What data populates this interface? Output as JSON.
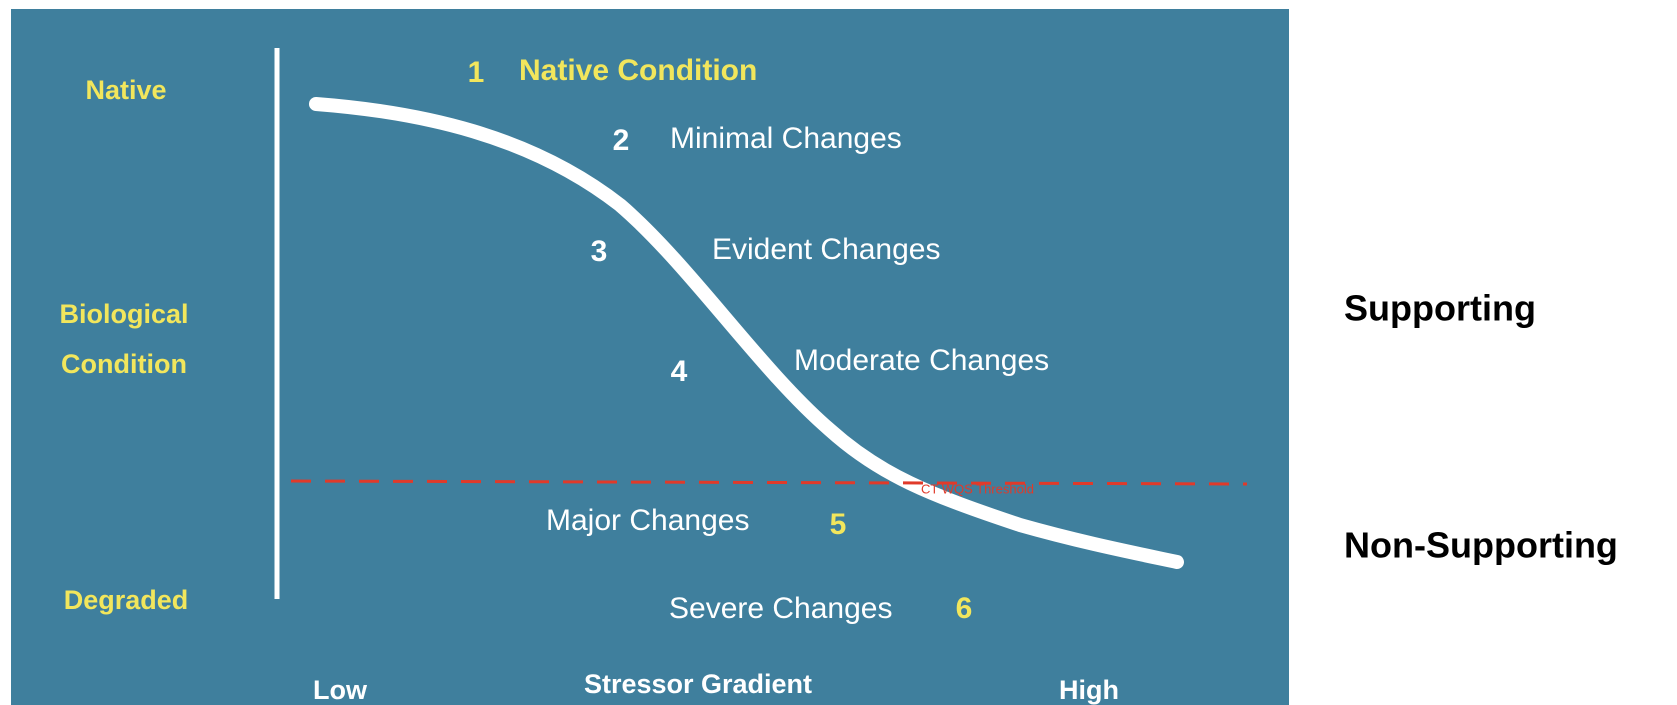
{
  "y_axis": {
    "top": "Native",
    "middle": [
      "Biological",
      "Condition"
    ],
    "bottom": "Degraded"
  },
  "x_axis": {
    "low": "Low",
    "title": "Stressor Gradient",
    "high": "High"
  },
  "levels": [
    {
      "number": "1",
      "label": "Native Condition"
    },
    {
      "number": "2",
      "label": "Minimal Changes"
    },
    {
      "number": "3",
      "label": "Evident Changes"
    },
    {
      "number": "4",
      "label": "Moderate Changes"
    },
    {
      "number": "5",
      "label": "Major Changes"
    },
    {
      "number": "6",
      "label": "Severe Changes"
    }
  ],
  "threshold": "CT WQS Threshold",
  "side_labels": {
    "upper": "Supporting",
    "lower": "Non-Supporting"
  }
}
